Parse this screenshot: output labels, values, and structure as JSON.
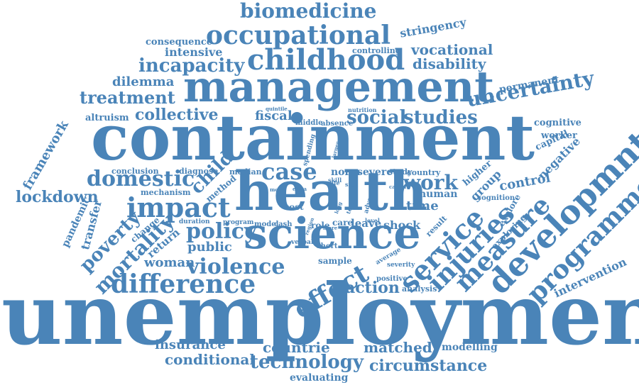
{
  "color": "#4a84b8",
  "words": [
    "unemployment",
    "containment",
    "management",
    "health",
    "science",
    "developmnt",
    "programme",
    "childhood",
    "occupational",
    "biomedicine",
    "service",
    "injuries",
    "measure",
    "effect",
    "difference",
    "violence",
    "impact",
    "case",
    "policy",
    "domestic",
    "treatment",
    "incapacity",
    "uncertainty",
    "social",
    "studies",
    "collective",
    "mortality",
    "poverty",
    "lockdown",
    "work",
    "child",
    "technology",
    "circumstance",
    "conditional",
    "matched",
    "countrie",
    "insurance",
    "evaluating",
    "action",
    "vocational",
    "disability",
    "dilemma",
    "intensive",
    "consequence",
    "stringency",
    "controlling",
    "permanent",
    "framework",
    "altruism",
    "fiscal",
    "control",
    "negative",
    "intervention",
    "modelling",
    "time",
    "human",
    "group",
    "shock",
    "leave",
    "woman",
    "public",
    "return",
    "transfer",
    "pandemic",
    "change",
    "mechanism",
    "method",
    "diagnose",
    "conclusion",
    "median",
    "norm",
    "severe",
    "study",
    "country",
    "higher",
    "cognition",
    "capital",
    "worker",
    "cognitive",
    "explore",
    "exploring",
    "result",
    "analysis",
    "positive",
    "severity",
    "average",
    "sample",
    "short",
    "care",
    "role",
    "cost",
    "model",
    "cash",
    "program",
    "duration",
    "verbal",
    "skill",
    "quintile",
    "middle",
    "absence",
    "nutrition",
    "spending",
    "level",
    "food",
    "life",
    "sick",
    "extra",
    "mood",
    "capita",
    "adverse",
    "term",
    "long",
    "region",
    "more",
    "larger"
  ]
}
